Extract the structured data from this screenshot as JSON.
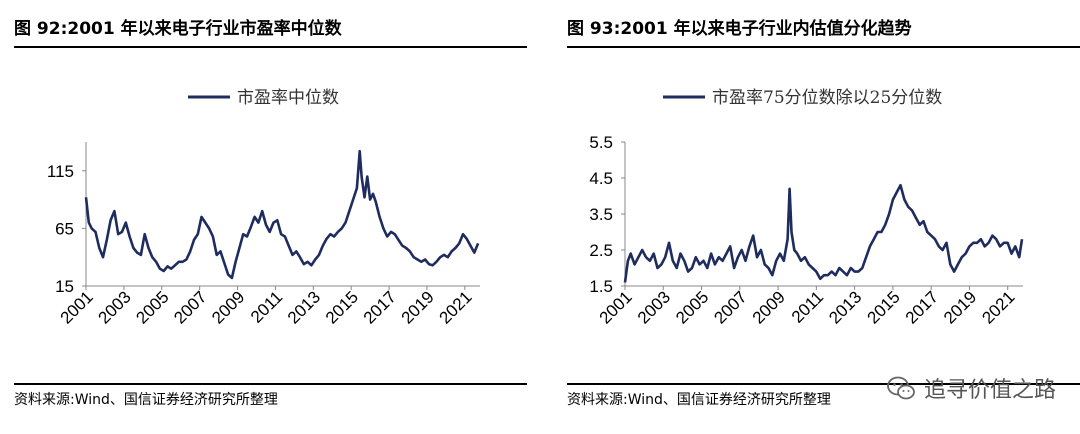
{
  "figures": [
    {
      "title": "图 92:2001 年以来电子行业市盈率中位数",
      "source": "资料来源:Wind、国信证券经济研究所整理"
    },
    {
      "title": "图 93:2001 年以来电子行业内估值分化趋势",
      "source": "资料来源:Wind、国信证券经济研究所整理"
    }
  ],
  "watermark": {
    "text": "追寻价值之路",
    "icon": "wechat-icon"
  },
  "chart_data": [
    {
      "type": "line",
      "title": "",
      "xlabel": "",
      "ylabel": "",
      "legend": "top-center",
      "grid": false,
      "ylim": [
        15,
        140
      ],
      "yticks": [
        15,
        65,
        115
      ],
      "xticks": [
        "2001",
        "2003",
        "2005",
        "2007",
        "2009",
        "2011",
        "2013",
        "2015",
        "2017",
        "2019",
        "2021"
      ],
      "xlim": [
        2001.0,
        2021.8
      ],
      "series": [
        {
          "name": "市盈率中位数",
          "color": "#1f2c5e",
          "x": [
            2001.0,
            2001.15,
            2001.3,
            2001.5,
            2001.7,
            2001.9,
            2002.1,
            2002.3,
            2002.5,
            2002.7,
            2002.9,
            2003.1,
            2003.3,
            2003.5,
            2003.7,
            2003.9,
            2004.1,
            2004.3,
            2004.5,
            2004.7,
            2004.9,
            2005.1,
            2005.3,
            2005.5,
            2005.7,
            2005.9,
            2006.1,
            2006.3,
            2006.5,
            2006.7,
            2006.9,
            2007.1,
            2007.3,
            2007.5,
            2007.7,
            2007.9,
            2008.1,
            2008.3,
            2008.5,
            2008.7,
            2008.9,
            2009.1,
            2009.3,
            2009.5,
            2009.7,
            2009.9,
            2010.1,
            2010.3,
            2010.5,
            2010.7,
            2010.9,
            2011.1,
            2011.3,
            2011.5,
            2011.7,
            2011.9,
            2012.1,
            2012.3,
            2012.5,
            2012.7,
            2012.9,
            2013.1,
            2013.3,
            2013.5,
            2013.7,
            2013.9,
            2014.1,
            2014.3,
            2014.5,
            2014.7,
            2014.9,
            2015.1,
            2015.3,
            2015.45,
            2015.55,
            2015.7,
            2015.85,
            2016.0,
            2016.15,
            2016.3,
            2016.5,
            2016.7,
            2016.9,
            2017.1,
            2017.3,
            2017.5,
            2017.7,
            2017.9,
            2018.1,
            2018.3,
            2018.5,
            2018.7,
            2018.9,
            2019.1,
            2019.3,
            2019.5,
            2019.7,
            2019.9,
            2020.1,
            2020.3,
            2020.5,
            2020.7,
            2020.9,
            2021.1,
            2021.3,
            2021.5,
            2021.7
          ],
          "values": [
            92,
            70,
            65,
            62,
            48,
            40,
            55,
            72,
            80,
            60,
            62,
            70,
            58,
            48,
            44,
            42,
            60,
            48,
            40,
            36,
            30,
            28,
            32,
            30,
            33,
            36,
            36,
            38,
            45,
            55,
            60,
            75,
            70,
            65,
            58,
            42,
            45,
            35,
            25,
            22,
            36,
            48,
            60,
            58,
            66,
            75,
            70,
            80,
            68,
            62,
            70,
            72,
            60,
            58,
            50,
            42,
            45,
            40,
            34,
            36,
            33,
            38,
            42,
            50,
            56,
            60,
            58,
            62,
            65,
            70,
            80,
            90,
            100,
            132,
            110,
            92,
            110,
            90,
            95,
            88,
            75,
            65,
            58,
            62,
            60,
            55,
            50,
            48,
            45,
            40,
            38,
            36,
            38,
            34,
            33,
            36,
            40,
            42,
            40,
            45,
            48,
            52,
            60,
            56,
            50,
            44,
            52
          ]
        }
      ]
    },
    {
      "type": "line",
      "title": "",
      "xlabel": "",
      "ylabel": "",
      "legend": "top-center",
      "grid": false,
      "ylim": [
        1.5,
        5.5
      ],
      "yticks": [
        1.5,
        2.5,
        3.5,
        4.5,
        5.5
      ],
      "xticks": [
        "2001",
        "2003",
        "2005",
        "2007",
        "2009",
        "2011",
        "2013",
        "2015",
        "2017",
        "2019",
        "2021"
      ],
      "xlim": [
        2001.0,
        2021.8
      ],
      "series": [
        {
          "name": "市盈率75分位数除以25分位数",
          "color": "#1f2c5e",
          "x": [
            2001.0,
            2001.15,
            2001.3,
            2001.5,
            2001.7,
            2001.9,
            2002.1,
            2002.3,
            2002.5,
            2002.7,
            2002.9,
            2003.1,
            2003.3,
            2003.5,
            2003.7,
            2003.9,
            2004.1,
            2004.3,
            2004.5,
            2004.7,
            2004.9,
            2005.1,
            2005.3,
            2005.5,
            2005.7,
            2005.9,
            2006.1,
            2006.3,
            2006.5,
            2006.7,
            2006.9,
            2007.1,
            2007.3,
            2007.5,
            2007.7,
            2007.9,
            2008.1,
            2008.3,
            2008.5,
            2008.7,
            2008.9,
            2009.1,
            2009.3,
            2009.5,
            2009.6,
            2009.7,
            2009.85,
            2010.0,
            2010.2,
            2010.4,
            2010.6,
            2010.8,
            2011.0,
            2011.2,
            2011.4,
            2011.6,
            2011.8,
            2012.0,
            2012.2,
            2012.4,
            2012.6,
            2012.8,
            2013.0,
            2013.2,
            2013.4,
            2013.6,
            2013.8,
            2014.0,
            2014.2,
            2014.4,
            2014.6,
            2014.8,
            2015.0,
            2015.2,
            2015.4,
            2015.6,
            2015.8,
            2016.0,
            2016.2,
            2016.4,
            2016.6,
            2016.8,
            2017.0,
            2017.2,
            2017.4,
            2017.6,
            2017.8,
            2018.0,
            2018.2,
            2018.4,
            2018.6,
            2018.8,
            2019.0,
            2019.2,
            2019.4,
            2019.6,
            2019.8,
            2020.0,
            2020.2,
            2020.4,
            2020.6,
            2020.8,
            2021.0,
            2021.2,
            2021.4,
            2021.6,
            2021.75
          ],
          "values": [
            1.6,
            2.2,
            2.4,
            2.1,
            2.3,
            2.5,
            2.3,
            2.2,
            2.4,
            2.0,
            2.1,
            2.3,
            2.7,
            2.2,
            2.0,
            2.4,
            2.2,
            1.9,
            2.0,
            2.3,
            2.1,
            2.2,
            2.0,
            2.4,
            2.1,
            2.3,
            2.2,
            2.4,
            2.6,
            2.0,
            2.3,
            2.5,
            2.2,
            2.6,
            2.9,
            2.3,
            2.5,
            2.1,
            2.0,
            1.8,
            2.2,
            2.4,
            2.2,
            2.8,
            4.2,
            3.0,
            2.5,
            2.4,
            2.2,
            2.3,
            2.1,
            2.0,
            1.9,
            1.7,
            1.8,
            1.8,
            1.9,
            1.8,
            2.0,
            1.9,
            1.8,
            2.0,
            1.9,
            1.9,
            2.0,
            2.3,
            2.6,
            2.8,
            3.0,
            3.0,
            3.2,
            3.5,
            3.9,
            4.1,
            4.3,
            3.9,
            3.7,
            3.6,
            3.4,
            3.2,
            3.3,
            3.0,
            2.9,
            2.8,
            2.6,
            2.5,
            2.7,
            2.1,
            1.9,
            2.1,
            2.3,
            2.4,
            2.6,
            2.7,
            2.7,
            2.8,
            2.6,
            2.7,
            2.9,
            2.8,
            2.6,
            2.7,
            2.7,
            2.4,
            2.6,
            2.3,
            2.8
          ]
        }
      ]
    }
  ]
}
